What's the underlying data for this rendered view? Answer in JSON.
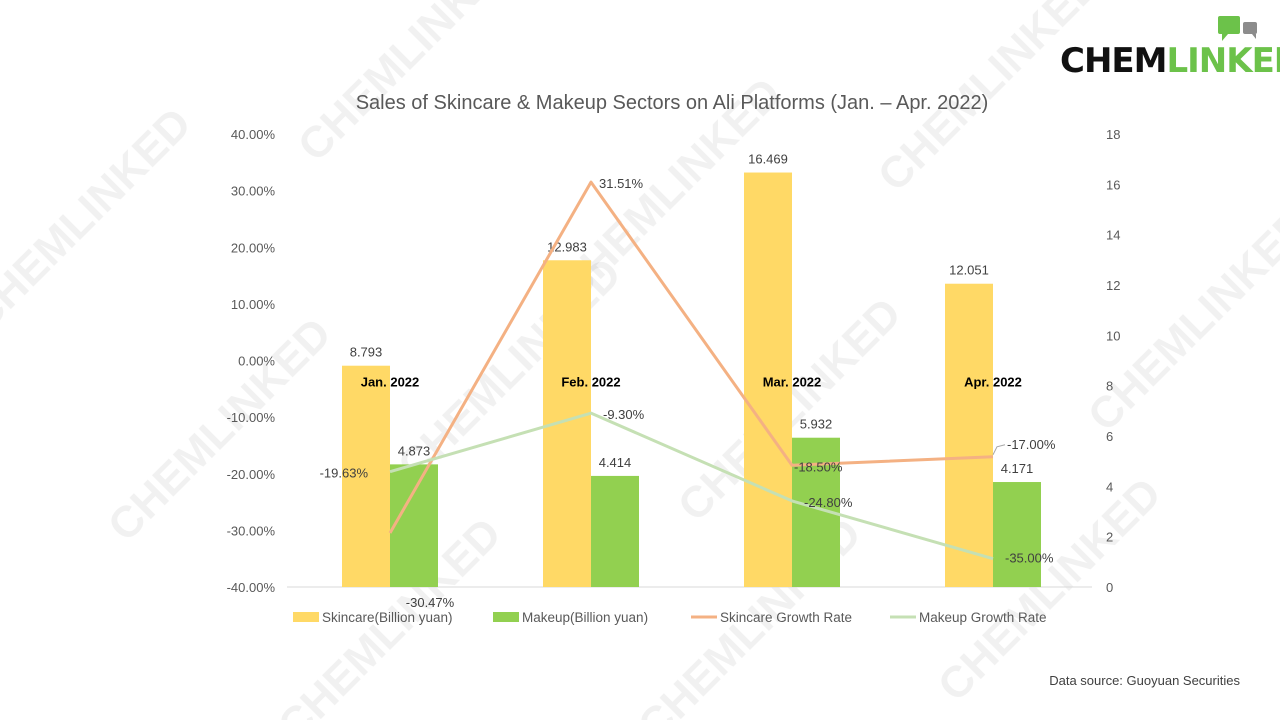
{
  "brand": {
    "part1": "CHEM",
    "part2": "LINKED"
  },
  "watermark_text": "CHEMLINKED",
  "source_note": "Data source: Guoyuan Securities",
  "colors": {
    "skincare_bar": "#FFD966",
    "makeup_bar": "#92D050",
    "skincare_line": "#F4B183",
    "makeup_line": "#C5E0B4",
    "brand_green": "#6CC24A"
  },
  "chart_data": {
    "type": "bar",
    "title": "Sales of Skincare & Makeup Sectors on Ali Platforms  (Jan. – Apr. 2022)",
    "categories": [
      "Jan. 2022",
      "Feb. 2022",
      "Mar. 2022",
      "Apr. 2022"
    ],
    "left_axis": {
      "range": [
        -40,
        40
      ],
      "ticks": [
        "40.00%",
        "30.00%",
        "20.00%",
        "10.00%",
        "0.00%",
        "-10.00%",
        "-20.00%",
        "-30.00%",
        "-40.00%"
      ]
    },
    "right_axis": {
      "range": [
        0,
        18
      ],
      "ticks": [
        "18",
        "16",
        "14",
        "12",
        "10",
        "8",
        "6",
        "4",
        "2",
        "0"
      ]
    },
    "series": [
      {
        "name": "Skincare(Billion yuan)",
        "type": "bar",
        "axis": "right",
        "values": [
          8.793,
          12.983,
          16.469,
          12.051
        ],
        "labels": [
          "8.793",
          "12.983",
          "16.469",
          "12.051"
        ]
      },
      {
        "name": "Makeup(Billion yuan)",
        "type": "bar",
        "axis": "right",
        "values": [
          4.873,
          4.414,
          5.932,
          4.171
        ],
        "labels": [
          "4.873",
          "4.414",
          "5.932",
          "4.171"
        ]
      },
      {
        "name": "Skincare Growth Rate",
        "type": "line",
        "axis": "left",
        "values": [
          -30.47,
          31.51,
          -18.5,
          -17.0
        ],
        "labels": [
          "-30.47%",
          "31.51%",
          "-18.50%",
          "-17.00%"
        ]
      },
      {
        "name": "Makeup Growth Rate",
        "type": "line",
        "axis": "left",
        "values": [
          -19.63,
          -9.3,
          -24.8,
          -35.0
        ],
        "labels": [
          "-19.63%",
          "-9.30%",
          "-24.80%",
          "-35.00%"
        ]
      }
    ],
    "legend_position": "bottom",
    "grid": false
  }
}
